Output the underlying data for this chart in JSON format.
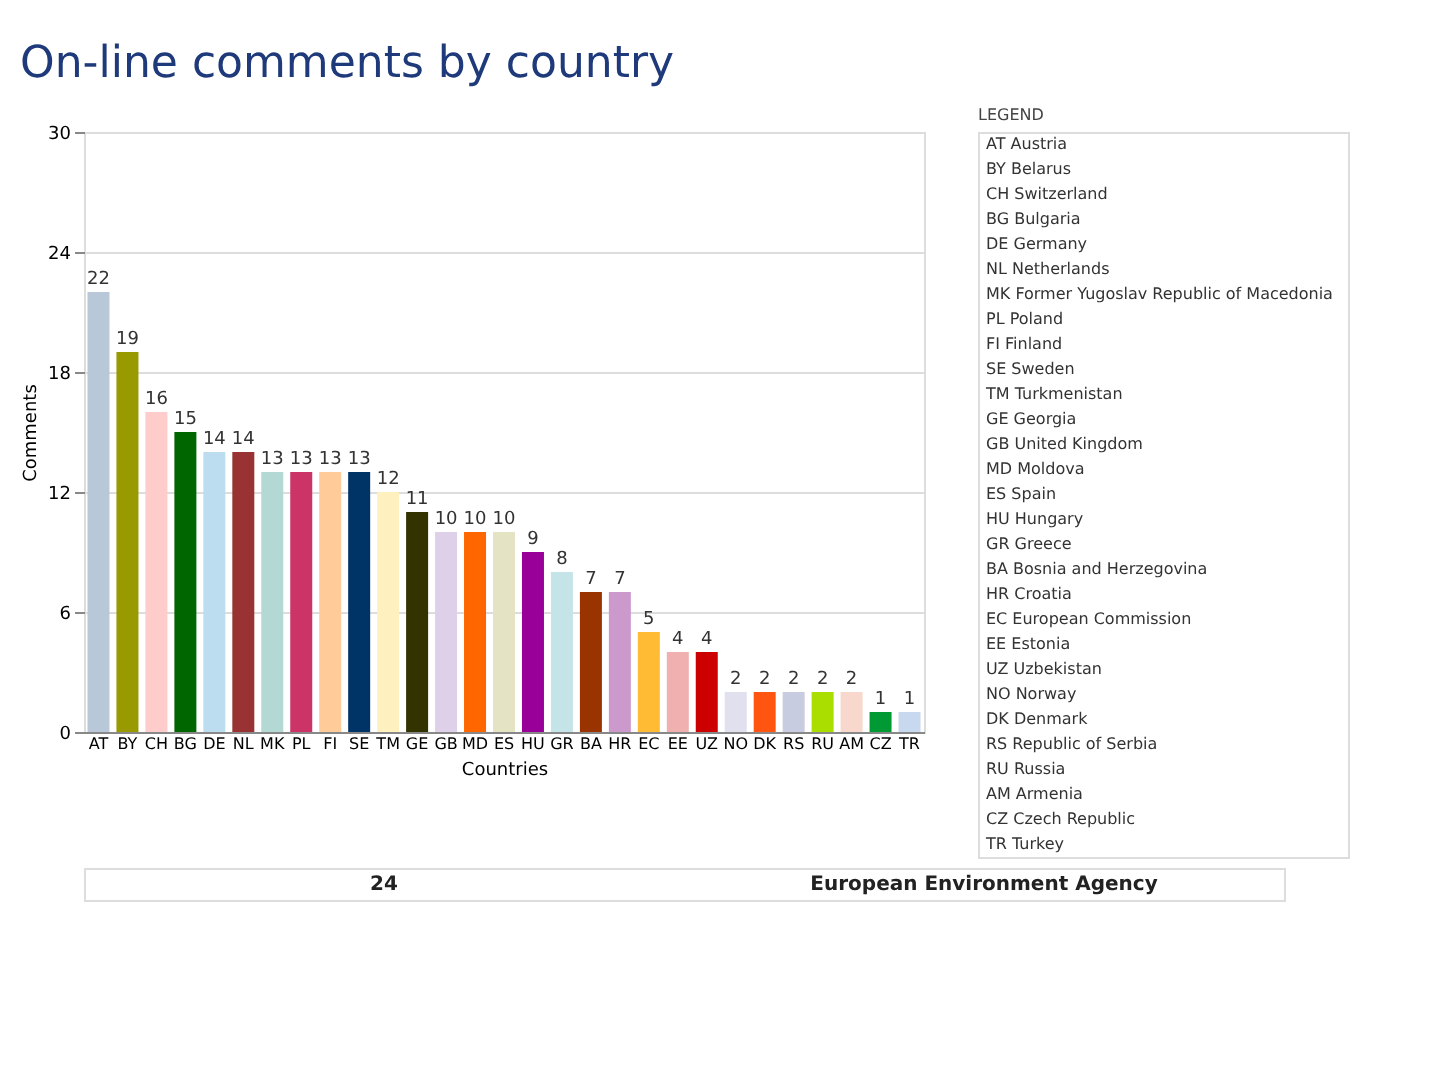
{
  "chart_data": {
    "type": "bar",
    "title": "On-line comments by country",
    "xlabel": "Countries",
    "ylabel": "Comments",
    "categories": [
      "AT",
      "BY",
      "CH",
      "BG",
      "DE",
      "NL",
      "MK",
      "PL",
      "FI",
      "SE",
      "TM",
      "GE",
      "GB",
      "MD",
      "ES",
      "HU",
      "GR",
      "BA",
      "HR",
      "EC",
      "EE",
      "UZ",
      "NO",
      "DK",
      "RS",
      "RU",
      "AM",
      "CZ",
      "TR"
    ],
    "values": [
      22,
      19,
      16,
      15,
      14,
      14,
      13,
      13,
      13,
      13,
      12,
      11,
      10,
      10,
      10,
      9,
      8,
      7,
      7,
      5,
      4,
      4,
      2,
      2,
      2,
      2,
      2,
      1,
      1
    ],
    "colors": [
      "#b8c8d8",
      "#999900",
      "#ffcccc",
      "#006600",
      "#bcdcf0",
      "#993333",
      "#b4d8d4",
      "#cc3366",
      "#ffcc99",
      "#003366",
      "#fff0c0",
      "#333300",
      "#ddd0e8",
      "#ff6600",
      "#e4e4c4",
      "#990099",
      "#c4e4e8",
      "#993300",
      "#cc99cc",
      "#ffbb33",
      "#f0b0b0",
      "#cc0000",
      "#e0e0ee",
      "#ff5511",
      "#c8cce0",
      "#aadd00",
      "#f8d8cc",
      "#009933",
      "#c8d8ee"
    ],
    "ylim": [
      0,
      30
    ],
    "yticks": [
      0,
      6,
      12,
      18,
      24,
      30
    ],
    "grid": "y",
    "data_labels": true,
    "legend_title": "LEGEND",
    "annotations": [
      "AT Austria",
      "BY Belarus",
      "CH Switzerland",
      "BG Bulgaria",
      "DE Germany",
      "NL Netherlands",
      "MK Former Yugoslav Republic of Macedonia",
      "PL Poland",
      "FI Finland",
      "SE Sweden",
      "TM Turkmenistan",
      "GE Georgia",
      "GB United Kingdom",
      "MD Moldova",
      "ES Spain",
      "HU Hungary",
      "GR Greece",
      "BA Bosnia and Herzegovina",
      "HR Croatia",
      "EC European Commission",
      "EE Estonia",
      "UZ Uzbekistan",
      "NO Norway",
      "DK Denmark",
      "RS Republic of Serbia",
      "RU Russia",
      "AM Armenia",
      "CZ Czech Republic",
      "TR Turkey",
      "24",
      "European Environment Agency"
    ]
  }
}
